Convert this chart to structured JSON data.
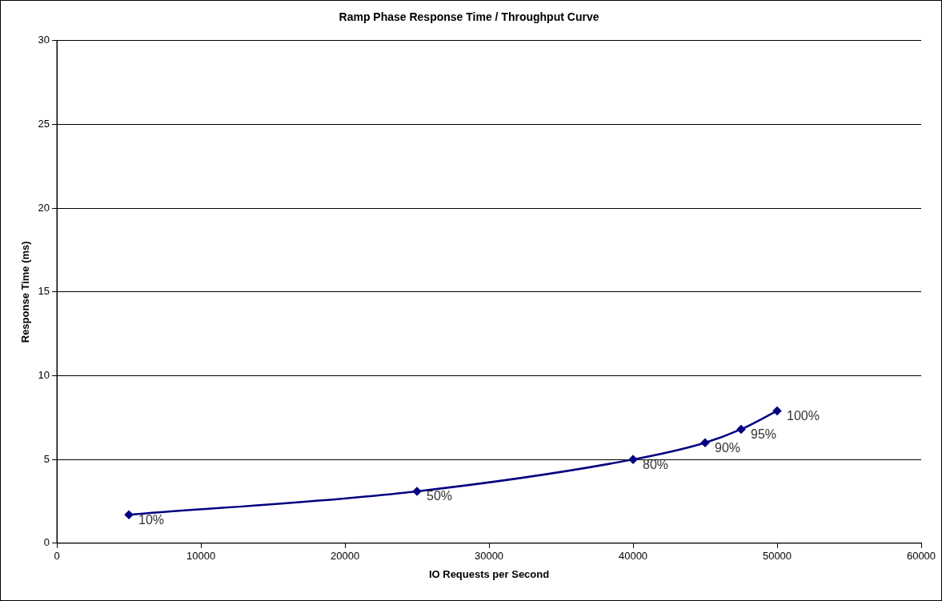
{
  "chart_data": {
    "type": "line",
    "title": "Ramp Phase Response Time / Throughput Curve",
    "xlabel": "IO Requests per Second",
    "ylabel": "Response Time (ms)",
    "x": [
      5000,
      25000,
      40000,
      45000,
      47500,
      50000
    ],
    "series": [
      {
        "color": "#000080",
        "values": [
          1.7,
          3.1,
          5.0,
          6.0,
          6.8,
          7.9
        ]
      }
    ],
    "annotations": [
      {
        "text": "10%",
        "x": 5000,
        "y": 1.7
      },
      {
        "text": "50%",
        "x": 25000,
        "y": 3.1
      },
      {
        "text": "80%",
        "x": 40000,
        "y": 5.0
      },
      {
        "text": "90%",
        "x": 45000,
        "y": 6.0
      },
      {
        "text": "95%",
        "x": 47500,
        "y": 6.8
      },
      {
        "text": "100%",
        "x": 50000,
        "y": 7.9
      }
    ],
    "xlim": [
      0,
      60000
    ],
    "xticks": [
      0,
      10000,
      20000,
      30000,
      40000,
      50000,
      60000
    ],
    "ylim": [
      0,
      30
    ],
    "yticks": [
      0,
      5,
      10,
      15,
      20,
      25,
      30
    ],
    "grid": "y",
    "legend": false,
    "marker": "diamond",
    "line_style": "solid"
  }
}
